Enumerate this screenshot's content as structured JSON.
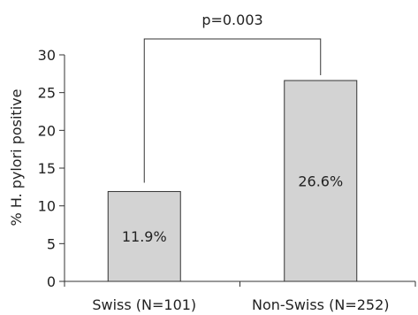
{
  "chart_data": {
    "type": "bar",
    "title": "",
    "xlabel": "",
    "ylabel": "% H. pylori positive",
    "ylim": [
      0,
      30
    ],
    "yticks": [
      0,
      5,
      10,
      15,
      20,
      25,
      30
    ],
    "grid": false,
    "legend": "none",
    "categories": [
      "Swiss (N=101)",
      "Non-Swiss (N=252)"
    ],
    "values": [
      11.9,
      26.6
    ],
    "data_labels": [
      "11.9%",
      "26.6%"
    ],
    "bar_color": "#d3d3d3",
    "bar_edge_color": "#333333",
    "annotation": {
      "text": "p=0.003",
      "between": [
        "Swiss (N=101)",
        "Non-Swiss (N=252)"
      ]
    }
  }
}
